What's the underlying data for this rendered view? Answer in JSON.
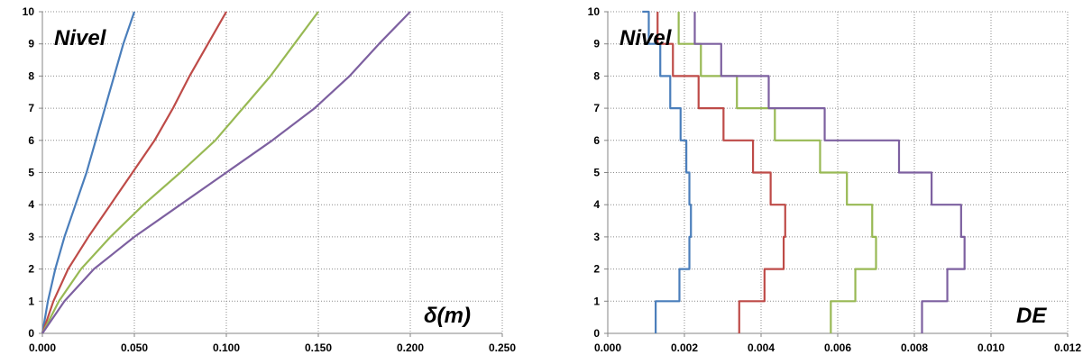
{
  "colors": {
    "blue": "#4a7ebb",
    "red": "#be4b48",
    "green": "#98b954",
    "purple": "#7d60a0",
    "grid": "#8c8c8c",
    "axis": "#858585"
  },
  "chart_data": [
    {
      "type": "line",
      "title": "",
      "annotations": {
        "level": "Nivel",
        "quantity": "δ(m)"
      },
      "xlim": [
        0,
        0.25
      ],
      "ylim": [
        0,
        10
      ],
      "x_ticks": [
        "0.000",
        "0.050",
        "0.100",
        "0.150",
        "0.200",
        "0.250"
      ],
      "y_ticks": [
        "0",
        "1",
        "2",
        "3",
        "4",
        "5",
        "6",
        "7",
        "8",
        "9",
        "10"
      ],
      "grid": true,
      "legend": "none",
      "series": [
        {
          "color": "blue",
          "x": [
            0,
            0.003,
            0.007,
            0.012,
            0.018,
            0.024,
            0.029,
            0.034,
            0.039,
            0.044,
            0.05
          ],
          "y": [
            0,
            1,
            2,
            3,
            4,
            5,
            6,
            7,
            8,
            9,
            10
          ]
        },
        {
          "color": "red",
          "x": [
            0,
            0.006,
            0.014,
            0.025,
            0.037,
            0.049,
            0.061,
            0.071,
            0.08,
            0.09,
            0.1
          ],
          "y": [
            0,
            1,
            2,
            3,
            4,
            5,
            6,
            7,
            8,
            9,
            10
          ]
        },
        {
          "color": "green",
          "x": [
            0,
            0.009,
            0.021,
            0.037,
            0.055,
            0.075,
            0.094,
            0.109,
            0.124,
            0.137,
            0.15
          ],
          "y": [
            0,
            1,
            2,
            3,
            4,
            5,
            6,
            7,
            8,
            9,
            10
          ]
        },
        {
          "color": "purple",
          "x": [
            0,
            0.012,
            0.028,
            0.05,
            0.075,
            0.1,
            0.125,
            0.148,
            0.167,
            0.183,
            0.2
          ],
          "y": [
            0,
            1,
            2,
            3,
            4,
            5,
            6,
            7,
            8,
            9,
            10
          ]
        }
      ]
    },
    {
      "type": "line",
      "title": "",
      "annotations": {
        "level": "Nivel",
        "quantity": "DE"
      },
      "xlim": [
        0,
        0.012
      ],
      "ylim": [
        0,
        10
      ],
      "x_ticks": [
        "0.000",
        "0.002",
        "0.004",
        "0.006",
        "0.008",
        "0.010",
        "0.012"
      ],
      "y_ticks": [
        "0",
        "1",
        "2",
        "3",
        "4",
        "5",
        "6",
        "7",
        "8",
        "9",
        "10"
      ],
      "grid": true,
      "legend": "none",
      "series": [
        {
          "color": "blue",
          "step": true,
          "x": [
            0.00125,
            0.00187,
            0.00213,
            0.00217,
            0.00213,
            0.00205,
            0.0019,
            0.00163,
            0.00137,
            0.00107,
            0.0009
          ],
          "y": [
            0,
            1,
            2,
            3,
            4,
            5,
            6,
            7,
            8,
            9,
            10
          ]
        },
        {
          "color": "red",
          "step": true,
          "x": [
            0.00343,
            0.00409,
            0.00459,
            0.00463,
            0.00425,
            0.00379,
            0.00302,
            0.00237,
            0.0017,
            0.0013,
            0.0013
          ],
          "y": [
            0,
            1,
            2,
            3,
            4,
            5,
            6,
            7,
            8,
            9,
            10
          ]
        },
        {
          "color": "green",
          "step": true,
          "x": [
            0.00582,
            0.00646,
            0.007,
            0.0069,
            0.00624,
            0.00554,
            0.00436,
            0.00337,
            0.00243,
            0.00185,
            0.00185
          ],
          "y": [
            0,
            1,
            2,
            3,
            4,
            5,
            6,
            7,
            8,
            9,
            10
          ]
        },
        {
          "color": "purple",
          "step": true,
          "x": [
            0.0082,
            0.00886,
            0.00931,
            0.00922,
            0.00845,
            0.0076,
            0.00566,
            0.0042,
            0.00296,
            0.00227,
            0.00227
          ],
          "y": [
            0,
            1,
            2,
            3,
            4,
            5,
            6,
            7,
            8,
            9,
            10
          ]
        }
      ]
    }
  ]
}
